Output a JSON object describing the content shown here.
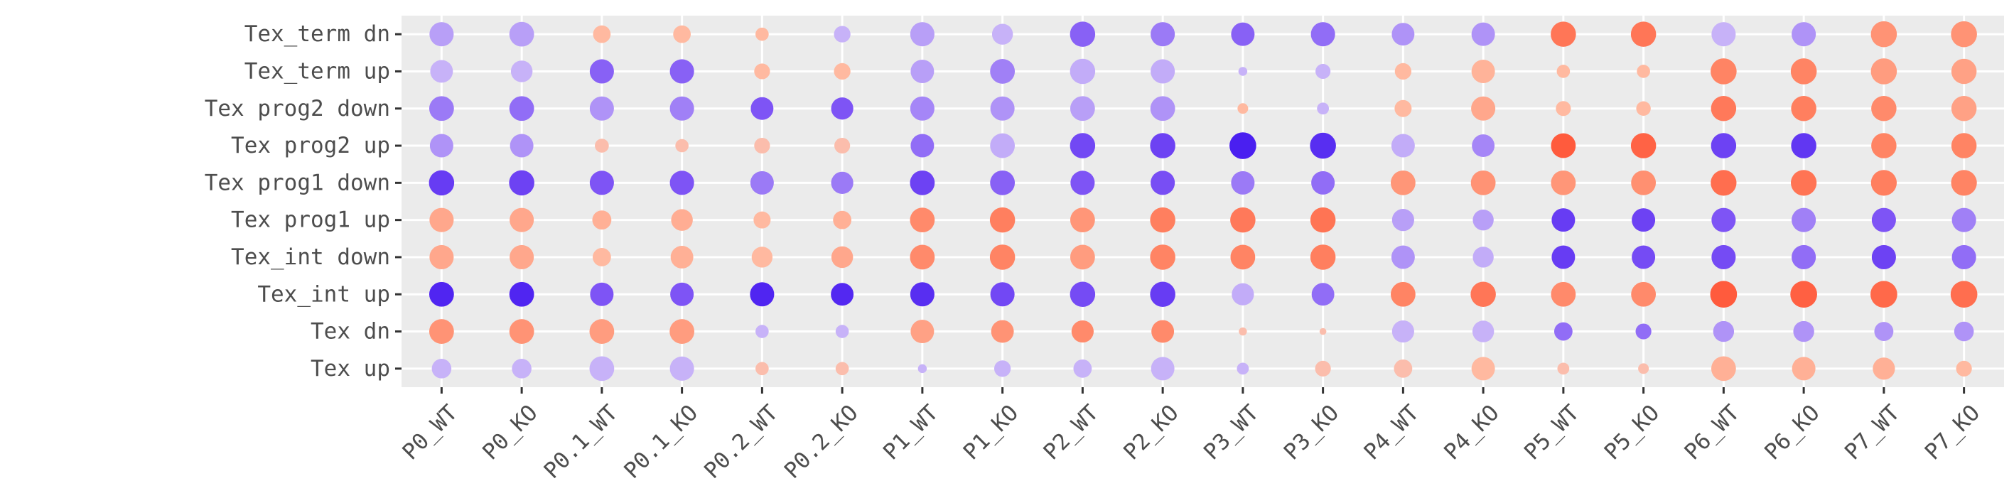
{
  "chart_data": {
    "type": "dot",
    "x_categories": [
      "P0_WT",
      "P0_KO",
      "P0.1_WT",
      "P0.1_KO",
      "P0.2_WT",
      "P0.2_KO",
      "P1_WT",
      "P1_KO",
      "P2_WT",
      "P2_KO",
      "P3_WT",
      "P3_KO",
      "P4_WT",
      "P4_KO",
      "P5_WT",
      "P5_KO",
      "P6_WT",
      "P6_KO",
      "P7_WT",
      "P7_KO"
    ],
    "y_categories": [
      "Tex up",
      "Tex dn",
      "Tex_int up",
      "Tex_int down",
      "Tex prog1 up",
      "Tex prog1 down",
      "Tex prog2 up",
      "Tex prog2 down",
      "Tex_term up",
      "Tex_term dn"
    ],
    "size_scale": "relative dot size (0-1)",
    "color_scale": "from blue/purple (low) to red/orange (high), 0-1",
    "grid": true,
    "panel_background": "#ebebeb",
    "legend": "none",
    "colors": {
      "low": "#4a1ff0",
      "mid": "#c7b2f8",
      "mid_warm": "#ffc0a6",
      "high": "#ff4d30"
    },
    "rows": [
      {
        "name": "Tex up",
        "sizes": [
          0.6,
          0.6,
          0.8,
          0.78,
          0.35,
          0.35,
          0.18,
          0.48,
          0.55,
          0.75,
          0.3,
          0.45,
          0.55,
          0.75,
          0.3,
          0.25,
          0.8,
          0.75,
          0.7,
          0.45
        ],
        "colors": [
          0.33,
          0.33,
          0.33,
          0.33,
          0.6,
          0.6,
          0.33,
          0.33,
          0.33,
          0.33,
          0.33,
          0.6,
          0.6,
          0.62,
          0.6,
          0.6,
          0.65,
          0.65,
          0.65,
          0.62
        ]
      },
      {
        "name": "Tex dn",
        "sizes": [
          0.8,
          0.8,
          0.8,
          0.8,
          0.35,
          0.35,
          0.75,
          0.72,
          0.7,
          0.72,
          0.15,
          0.1,
          0.7,
          0.68,
          0.55,
          0.45,
          0.65,
          0.65,
          0.58,
          0.6
        ],
        "colors": [
          0.75,
          0.75,
          0.72,
          0.72,
          0.33,
          0.33,
          0.7,
          0.75,
          0.78,
          0.78,
          0.6,
          0.6,
          0.33,
          0.33,
          0.22,
          0.22,
          0.28,
          0.28,
          0.28,
          0.28
        ]
      },
      {
        "name": "Tex_int up",
        "sizes": [
          0.8,
          0.8,
          0.75,
          0.75,
          0.78,
          0.72,
          0.78,
          0.78,
          0.82,
          0.82,
          0.7,
          0.72,
          0.8,
          0.82,
          0.8,
          0.8,
          0.88,
          0.88,
          0.88,
          0.88
        ],
        "colors": [
          0.02,
          0.02,
          0.18,
          0.18,
          0.02,
          0.03,
          0.05,
          0.14,
          0.15,
          0.1,
          0.32,
          0.22,
          0.8,
          0.85,
          0.78,
          0.78,
          0.95,
          0.93,
          0.9,
          0.88
        ]
      },
      {
        "name": "Tex_int down",
        "sizes": [
          0.78,
          0.78,
          0.55,
          0.72,
          0.65,
          0.68,
          0.8,
          0.82,
          0.8,
          0.82,
          0.8,
          0.82,
          0.75,
          0.65,
          0.75,
          0.75,
          0.78,
          0.78,
          0.78,
          0.78
        ],
        "colors": [
          0.68,
          0.68,
          0.62,
          0.65,
          0.62,
          0.68,
          0.78,
          0.8,
          0.72,
          0.8,
          0.8,
          0.82,
          0.28,
          0.32,
          0.1,
          0.15,
          0.15,
          0.22,
          0.12,
          0.22
        ]
      },
      {
        "name": "Tex prog1 up",
        "sizes": [
          0.78,
          0.78,
          0.58,
          0.68,
          0.5,
          0.55,
          0.8,
          0.82,
          0.8,
          0.82,
          0.82,
          0.82,
          0.7,
          0.65,
          0.75,
          0.75,
          0.78,
          0.78,
          0.78,
          0.78
        ],
        "colors": [
          0.68,
          0.68,
          0.65,
          0.66,
          0.62,
          0.65,
          0.78,
          0.82,
          0.74,
          0.82,
          0.84,
          0.86,
          0.3,
          0.3,
          0.1,
          0.12,
          0.18,
          0.25,
          0.18,
          0.25
        ]
      },
      {
        "name": "Tex prog1 down",
        "sizes": [
          0.82,
          0.82,
          0.78,
          0.78,
          0.75,
          0.7,
          0.8,
          0.8,
          0.78,
          0.78,
          0.75,
          0.75,
          0.8,
          0.8,
          0.8,
          0.8,
          0.84,
          0.84,
          0.84,
          0.84
        ],
        "colors": [
          0.1,
          0.12,
          0.18,
          0.18,
          0.24,
          0.24,
          0.12,
          0.2,
          0.18,
          0.16,
          0.24,
          0.22,
          0.74,
          0.75,
          0.74,
          0.76,
          0.88,
          0.86,
          0.82,
          0.8
        ]
      },
      {
        "name": "Tex prog2 up",
        "sizes": [
          0.75,
          0.75,
          0.38,
          0.35,
          0.45,
          0.45,
          0.75,
          0.8,
          0.82,
          0.82,
          0.88,
          0.85,
          0.75,
          0.72,
          0.8,
          0.82,
          0.82,
          0.82,
          0.82,
          0.82
        ],
        "colors": [
          0.28,
          0.28,
          0.6,
          0.6,
          0.6,
          0.6,
          0.22,
          0.32,
          0.14,
          0.12,
          0.0,
          0.05,
          0.32,
          0.26,
          0.95,
          0.92,
          0.12,
          0.08,
          0.8,
          0.8
        ]
      },
      {
        "name": "Tex prog2 down",
        "sizes": [
          0.8,
          0.8,
          0.78,
          0.78,
          0.72,
          0.7,
          0.78,
          0.78,
          0.8,
          0.8,
          0.25,
          0.3,
          0.5,
          0.78,
          0.42,
          0.4,
          0.82,
          0.82,
          0.82,
          0.82
        ],
        "colors": [
          0.24,
          0.22,
          0.28,
          0.25,
          0.18,
          0.18,
          0.26,
          0.28,
          0.3,
          0.28,
          0.62,
          0.33,
          0.62,
          0.68,
          0.62,
          0.62,
          0.84,
          0.82,
          0.78,
          0.7
        ]
      },
      {
        "name": "Tex_term up",
        "sizes": [
          0.72,
          0.68,
          0.78,
          0.78,
          0.45,
          0.48,
          0.75,
          0.8,
          0.82,
          0.78,
          0.18,
          0.42,
          0.48,
          0.75,
          0.35,
          0.35,
          0.85,
          0.85,
          0.85,
          0.82
        ],
        "colors": [
          0.33,
          0.33,
          0.2,
          0.2,
          0.62,
          0.62,
          0.3,
          0.25,
          0.32,
          0.32,
          0.33,
          0.33,
          0.62,
          0.64,
          0.62,
          0.62,
          0.8,
          0.8,
          0.72,
          0.7
        ]
      },
      {
        "name": "Tex_term dn",
        "sizes": [
          0.78,
          0.8,
          0.52,
          0.52,
          0.35,
          0.48,
          0.78,
          0.65,
          0.82,
          0.78,
          0.75,
          0.78,
          0.72,
          0.75,
          0.82,
          0.82,
          0.78,
          0.78,
          0.85,
          0.85
        ],
        "colors": [
          0.3,
          0.3,
          0.62,
          0.62,
          0.62,
          0.33,
          0.3,
          0.33,
          0.2,
          0.24,
          0.2,
          0.22,
          0.28,
          0.28,
          0.85,
          0.85,
          0.33,
          0.28,
          0.75,
          0.75
        ]
      }
    ]
  }
}
